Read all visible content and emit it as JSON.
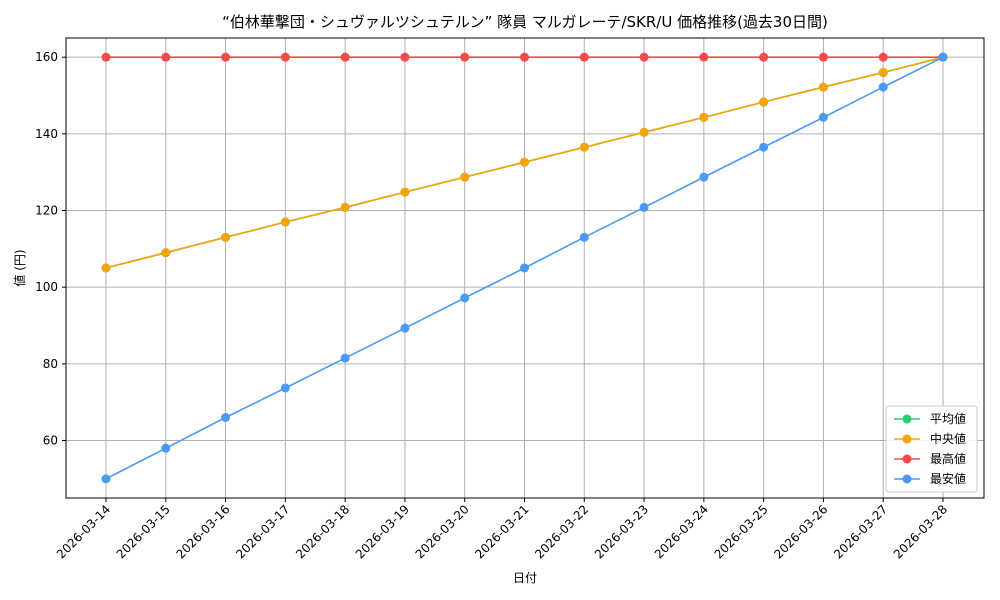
{
  "chart_data": {
    "type": "line",
    "title": "“伯林華撃団・シュヴァルツシュテルン” 隊員 マルガレーテ/SKR/U 価格推移(過去30日間)",
    "xlabel": "日付",
    "ylabel": "値 (円)",
    "ylim": [
      45,
      165
    ],
    "yticks": [
      60,
      80,
      100,
      120,
      140,
      160
    ],
    "grid": true,
    "legend_position": "bottom-right",
    "categories": [
      "2026-03-14",
      "2026-03-15",
      "2026-03-16",
      "2026-03-17",
      "2026-03-18",
      "2026-03-19",
      "2026-03-20",
      "2026-03-21",
      "2026-03-22",
      "2026-03-23",
      "2026-03-24",
      "2026-03-25",
      "2026-03-26",
      "2026-03-27",
      "2026-03-28"
    ],
    "series": [
      {
        "name": "平均値",
        "color": "#2ecc71",
        "values": [
          105,
          109,
          113,
          117,
          120.8,
          124.8,
          128.7,
          132.6,
          136.5,
          140.4,
          144.3,
          148.3,
          152.2,
          156,
          160
        ]
      },
      {
        "name": "中央値",
        "color": "#f5a30a",
        "values": [
          105,
          109,
          113,
          117,
          120.8,
          124.8,
          128.7,
          132.6,
          136.5,
          140.4,
          144.3,
          148.3,
          152.2,
          156,
          160
        ]
      },
      {
        "name": "最高値",
        "color": "#f44a4a",
        "values": [
          160,
          160,
          160,
          160,
          160,
          160,
          160,
          160,
          160,
          160,
          160,
          160,
          160,
          160,
          160
        ]
      },
      {
        "name": "最安値",
        "color": "#4a9af4",
        "values": [
          50,
          58,
          66,
          73.7,
          81.5,
          89.3,
          97.2,
          105,
          113,
          120.8,
          128.7,
          136.5,
          144.3,
          152.2,
          160
        ]
      }
    ]
  }
}
